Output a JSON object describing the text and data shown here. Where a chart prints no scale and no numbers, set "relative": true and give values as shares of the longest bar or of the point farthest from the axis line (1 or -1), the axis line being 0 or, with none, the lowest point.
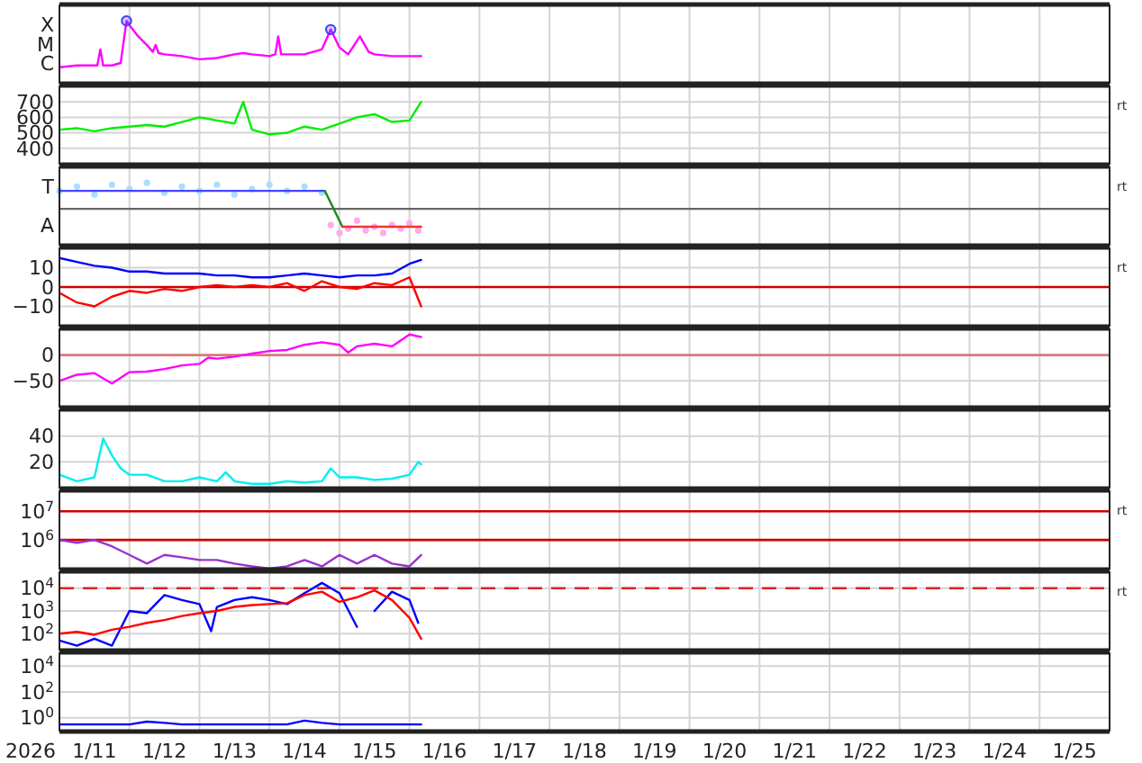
{
  "chart_data": [
    {
      "type": "line",
      "xlim": [
        "2026-01-11T00:00",
        "2026-01-26T00:00"
      ],
      "xticks": [
        {
          "value": "2026-01-11T00:00",
          "label": null
        },
        {
          "value": "2026-01-12T00:00",
          "label": null
        },
        {
          "value": "2026-01-13T00:00",
          "label": null
        },
        {
          "value": "2026-01-14T00:00",
          "label": null
        },
        {
          "value": "2026-01-15T00:00",
          "label": null
        },
        {
          "value": "2026-01-16T00:00",
          "label": null
        },
        {
          "value": "2026-01-17T00:00",
          "label": null
        },
        {
          "value": "2026-01-18T00:00",
          "label": null
        },
        {
          "value": "2026-01-19T00:00",
          "label": null
        },
        {
          "value": "2026-01-20T00:00",
          "label": null
        },
        {
          "value": "2026-01-21T00:00",
          "label": null
        },
        {
          "value": "2026-01-22T00:00",
          "label": null
        },
        {
          "value": "2026-01-23T00:00",
          "label": null
        },
        {
          "value": "2026-01-24T00:00",
          "label": null
        },
        {
          "value": "2026-01-25T00:00",
          "label": null
        },
        {
          "value": "2026-01-26T00:00",
          "label": null
        }
      ],
      "relative": true,
      "grid": true,
      "tick_labels": "y",
      "ylabel": "X\nM\nC",
      "series": [
        {
          "color": "#ff00ff",
          "x": [
            "2026-01-11T00:00",
            "2026-01-11T06:00",
            "2026-01-11T12:00",
            "2026-01-11T13:00",
            "2026-01-11T14:00",
            "2026-01-11T15:00",
            "2026-01-11T18:00",
            "2026-01-11T21:00",
            "2026-01-11T23:00",
            "2026-01-12T00:00",
            "2026-01-12T03:00",
            "2026-01-12T06:00",
            "2026-01-12T08:00",
            "2026-01-12T09:00",
            "2026-01-12T10:00",
            "2026-01-12T12:00",
            "2026-01-12T18:00",
            "2026-01-13T00:00",
            "2026-01-13T06:00",
            "2026-01-13T12:00",
            "2026-01-13T15:00",
            "2026-01-13T18:00",
            "2026-01-14T00:00",
            "2026-01-14T02:00",
            "2026-01-14T03:00",
            "2026-01-14T04:00",
            "2026-01-14T12:00",
            "2026-01-14T18:00",
            "2026-01-14T21:00",
            "2026-01-15T00:00",
            "2026-01-15T03:00",
            "2026-01-15T07:00",
            "2026-01-15T10:00",
            "2026-01-15T12:00",
            "2026-01-15T18:00",
            "2026-01-16T00:00",
            "2026-01-16T04:00"
          ],
          "values": [
            0.25,
            0.28,
            0.28,
            0.28,
            0.54,
            0.28,
            0.28,
            0.32,
            1,
            0.93,
            0.75,
            0.61,
            0.5,
            0.61,
            0.48,
            0.46,
            0.43,
            0.38,
            0.4,
            0.46,
            0.48,
            0.46,
            0.43,
            0.46,
            0.75,
            0.46,
            0.46,
            0.54,
            0.86,
            0.57,
            0.46,
            0.75,
            0.5,
            0.46,
            0.43,
            0.43,
            0.43
          ]
        },
        {
          "type": "scatter",
          "color": "#4040ff",
          "x": [
            "2026-01-11T23:00",
            "2026-01-14T21:00"
          ],
          "values": [
            1,
            0.86
          ]
        }
      ]
    },
    {
      "type": "line",
      "xlim": [
        "2026-01-11T00:00",
        "2026-01-26T00:00"
      ],
      "xticks": [
        {
          "value": "2026-01-11T00:00",
          "label": null
        },
        {
          "value": "2026-01-12T00:00",
          "label": null
        },
        {
          "value": "2026-01-13T00:00",
          "label": null
        },
        {
          "value": "2026-01-14T00:00",
          "label": null
        },
        {
          "value": "2026-01-15T00:00",
          "label": null
        },
        {
          "value": "2026-01-16T00:00",
          "label": null
        },
        {
          "value": "2026-01-17T00:00",
          "label": null
        },
        {
          "value": "2026-01-18T00:00",
          "label": null
        },
        {
          "value": "2026-01-19T00:00",
          "label": null
        },
        {
          "value": "2026-01-20T00:00",
          "label": null
        },
        {
          "value": "2026-01-21T00:00",
          "label": null
        },
        {
          "value": "2026-01-22T00:00",
          "label": null
        },
        {
          "value": "2026-01-23T00:00",
          "label": null
        },
        {
          "value": "2026-01-24T00:00",
          "label": null
        },
        {
          "value": "2026-01-25T00:00",
          "label": null
        },
        {
          "value": "2026-01-26T00:00",
          "label": null
        }
      ],
      "ylim": [
        300,
        800
      ],
      "yticks": [
        400,
        500,
        600,
        700
      ],
      "grid": true,
      "tick_labels": "y",
      "annotations": [
        "rt"
      ],
      "series": [
        {
          "color": "#00ee00",
          "x": [
            "2026-01-11T00:00",
            "2026-01-11T06:00",
            "2026-01-11T12:00",
            "2026-01-11T18:00",
            "2026-01-12T00:00",
            "2026-01-12T06:00",
            "2026-01-12T12:00",
            "2026-01-12T18:00",
            "2026-01-13T00:00",
            "2026-01-13T06:00",
            "2026-01-13T12:00",
            "2026-01-13T15:00",
            "2026-01-13T18:00",
            "2026-01-14T00:00",
            "2026-01-14T06:00",
            "2026-01-14T12:00",
            "2026-01-14T18:00",
            "2026-01-15T00:00",
            "2026-01-15T06:00",
            "2026-01-15T12:00",
            "2026-01-15T18:00",
            "2026-01-16T00:00",
            "2026-01-16T04:00"
          ],
          "values": [
            520,
            530,
            510,
            530,
            540,
            550,
            540,
            570,
            600,
            580,
            560,
            700,
            520,
            490,
            500,
            540,
            520,
            560,
            600,
            620,
            570,
            580,
            700
          ]
        }
      ]
    },
    {
      "type": "line",
      "xlim": [
        "2026-01-11T00:00",
        "2026-01-26T00:00"
      ],
      "xticks": [
        {
          "value": "2026-01-11T00:00",
          "label": null
        },
        {
          "value": "2026-01-12T00:00",
          "label": null
        },
        {
          "value": "2026-01-13T00:00",
          "label": null
        },
        {
          "value": "2026-01-14T00:00",
          "label": null
        },
        {
          "value": "2026-01-15T00:00",
          "label": null
        },
        {
          "value": "2026-01-16T00:00",
          "label": null
        },
        {
          "value": "2026-01-17T00:00",
          "label": null
        },
        {
          "value": "2026-01-18T00:00",
          "label": null
        },
        {
          "value": "2026-01-19T00:00",
          "label": null
        },
        {
          "value": "2026-01-20T00:00",
          "label": null
        },
        {
          "value": "2026-01-21T00:00",
          "label": null
        },
        {
          "value": "2026-01-22T00:00",
          "label": null
        },
        {
          "value": "2026-01-23T00:00",
          "label": null
        },
        {
          "value": "2026-01-24T00:00",
          "label": null
        },
        {
          "value": "2026-01-25T00:00",
          "label": null
        },
        {
          "value": "2026-01-26T00:00",
          "label": null
        }
      ],
      "relative": true,
      "grid": true,
      "tick_labels": "y",
      "annotations": [
        "rt"
      ],
      "ylabel": "T\nA",
      "series": [
        {
          "type": "scatter",
          "color": "#aaddff",
          "x": [
            "2026-01-11T00:00",
            "2026-01-11T06:00",
            "2026-01-11T12:00",
            "2026-01-11T18:00",
            "2026-01-12T00:00",
            "2026-01-12T06:00",
            "2026-01-12T12:00",
            "2026-01-12T18:00",
            "2026-01-13T00:00",
            "2026-01-13T06:00",
            "2026-01-13T12:00",
            "2026-01-13T18:00",
            "2026-01-14T00:00",
            "2026-01-14T06:00",
            "2026-01-14T12:00",
            "2026-01-14T18:00"
          ],
          "values": [
            0.87,
            0.94,
            0.81,
            0.97,
            0.9,
            1,
            0.84,
            0.94,
            0.87,
            0.97,
            0.81,
            0.9,
            0.97,
            0.87,
            0.94,
            0.84
          ]
        },
        {
          "type": "scatter",
          "color": "#ffaaee",
          "x": [
            "2026-01-14T21:00",
            "2026-01-15T00:00",
            "2026-01-15T03:00",
            "2026-01-15T06:00",
            "2026-01-15T09:00",
            "2026-01-15T12:00",
            "2026-01-15T15:00",
            "2026-01-15T18:00",
            "2026-01-15T21:00",
            "2026-01-16T00:00",
            "2026-01-16T03:00"
          ],
          "values": [
            0.32,
            0.19,
            0.26,
            0.39,
            0.23,
            0.29,
            0.19,
            0.32,
            0.26,
            0.35,
            0.23
          ]
        },
        {
          "color": "#666666",
          "x": [
            "2026-01-11T00:00",
            "2026-01-26T00:00"
          ],
          "values": [
            0.58,
            0.58
          ]
        },
        {
          "color": "#4444ff",
          "x": [
            "2026-01-11T00:00",
            "2026-01-14T19:00"
          ],
          "values": [
            0.87,
            0.87
          ]
        },
        {
          "color": "#228822",
          "x": [
            "2026-01-14T19:00",
            "2026-01-15T01:00"
          ],
          "values": [
            0.87,
            0.29
          ]
        },
        {
          "color": "#ee3333",
          "x": [
            "2026-01-15T01:00",
            "2026-01-16T04:00"
          ],
          "values": [
            0.29,
            0.29
          ]
        }
      ]
    },
    {
      "type": "line",
      "xlim": [
        "2026-01-11T00:00",
        "2026-01-26T00:00"
      ],
      "xticks": [
        {
          "value": "2026-01-11T00:00",
          "label": null
        },
        {
          "value": "2026-01-12T00:00",
          "label": null
        },
        {
          "value": "2026-01-13T00:00",
          "label": null
        },
        {
          "value": "2026-01-14T00:00",
          "label": null
        },
        {
          "value": "2026-01-15T00:00",
          "label": null
        },
        {
          "value": "2026-01-16T00:00",
          "label": null
        },
        {
          "value": "2026-01-17T00:00",
          "label": null
        },
        {
          "value": "2026-01-18T00:00",
          "label": null
        },
        {
          "value": "2026-01-19T00:00",
          "label": null
        },
        {
          "value": "2026-01-20T00:00",
          "label": null
        },
        {
          "value": "2026-01-21T00:00",
          "label": null
        },
        {
          "value": "2026-01-22T00:00",
          "label": null
        },
        {
          "value": "2026-01-23T00:00",
          "label": null
        },
        {
          "value": "2026-01-24T00:00",
          "label": null
        },
        {
          "value": "2026-01-25T00:00",
          "label": null
        },
        {
          "value": "2026-01-26T00:00",
          "label": null
        }
      ],
      "ylim": [
        -20,
        20
      ],
      "yticks": [
        {
          "value": -10,
          "label": "−10"
        },
        0,
        10
      ],
      "grid": true,
      "tick_labels": "y",
      "annotations": [
        "rt"
      ],
      "ref_lines": [
        {
          "axis": "y",
          "value": 0,
          "color": "#cc0000"
        }
      ],
      "x": [
        "2026-01-11T00:00",
        "2026-01-11T06:00",
        "2026-01-11T12:00",
        "2026-01-11T18:00",
        "2026-01-12T00:00",
        "2026-01-12T06:00",
        "2026-01-12T12:00",
        "2026-01-12T18:00",
        "2026-01-13T00:00",
        "2026-01-13T06:00",
        "2026-01-13T12:00",
        "2026-01-13T18:00",
        "2026-01-14T00:00",
        "2026-01-14T06:00",
        "2026-01-14T12:00",
        "2026-01-14T18:00",
        "2026-01-15T00:00",
        "2026-01-15T06:00",
        "2026-01-15T12:00",
        "2026-01-15T18:00",
        "2026-01-16T00:00",
        "2026-01-16T04:00"
      ],
      "series": [
        {
          "color": "#0000ff",
          "values": [
            15,
            13,
            11,
            10,
            8,
            8,
            7,
            7,
            7,
            6,
            6,
            5,
            5,
            6,
            7,
            6,
            5,
            6,
            6,
            7,
            12,
            14
          ]
        },
        {
          "color": "#ff0000",
          "values": [
            -3,
            -8,
            -10,
            -5,
            -2,
            -3,
            -1,
            -2,
            0,
            1,
            0,
            1,
            0,
            2,
            -2,
            3,
            0,
            -1,
            2,
            1,
            5,
            -10
          ]
        }
      ]
    },
    {
      "type": "line",
      "xlim": [
        "2026-01-11T00:00",
        "2026-01-26T00:00"
      ],
      "xticks": [
        {
          "value": "2026-01-11T00:00",
          "label": null
        },
        {
          "value": "2026-01-12T00:00",
          "label": null
        },
        {
          "value": "2026-01-13T00:00",
          "label": null
        },
        {
          "value": "2026-01-14T00:00",
          "label": null
        },
        {
          "value": "2026-01-15T00:00",
          "label": null
        },
        {
          "value": "2026-01-16T00:00",
          "label": null
        },
        {
          "value": "2026-01-17T00:00",
          "label": null
        },
        {
          "value": "2026-01-18T00:00",
          "label": null
        },
        {
          "value": "2026-01-19T00:00",
          "label": null
        },
        {
          "value": "2026-01-20T00:00",
          "label": null
        },
        {
          "value": "2026-01-21T00:00",
          "label": null
        },
        {
          "value": "2026-01-22T00:00",
          "label": null
        },
        {
          "value": "2026-01-23T00:00",
          "label": null
        },
        {
          "value": "2026-01-24T00:00",
          "label": null
        },
        {
          "value": "2026-01-25T00:00",
          "label": null
        },
        {
          "value": "2026-01-26T00:00",
          "label": null
        }
      ],
      "ylim": [
        -100,
        50
      ],
      "yticks": [
        {
          "value": -50,
          "label": "−50"
        },
        0
      ],
      "grid": true,
      "tick_labels": "y",
      "ref_lines": [
        {
          "axis": "y",
          "value": 0,
          "color": "#dd7777"
        }
      ],
      "series": [
        {
          "color": "#ff00ff",
          "x": [
            "2026-01-11T00:00",
            "2026-01-11T06:00",
            "2026-01-11T12:00",
            "2026-01-11T18:00",
            "2026-01-12T00:00",
            "2026-01-12T06:00",
            "2026-01-12T12:00",
            "2026-01-12T18:00",
            "2026-01-13T00:00",
            "2026-01-13T03:00",
            "2026-01-13T06:00",
            "2026-01-13T12:00",
            "2026-01-13T18:00",
            "2026-01-14T00:00",
            "2026-01-14T06:00",
            "2026-01-14T12:00",
            "2026-01-14T18:00",
            "2026-01-15T00:00",
            "2026-01-15T03:00",
            "2026-01-15T06:00",
            "2026-01-15T12:00",
            "2026-01-15T18:00",
            "2026-01-16T00:00",
            "2026-01-16T04:00"
          ],
          "values": [
            -50,
            -38,
            -35,
            -55,
            -33,
            -32,
            -27,
            -20,
            -17,
            -5,
            -7,
            -3,
            3,
            8,
            10,
            20,
            25,
            20,
            5,
            17,
            22,
            17,
            40,
            35
          ]
        }
      ]
    },
    {
      "type": "line",
      "xlim": [
        "2026-01-11T00:00",
        "2026-01-26T00:00"
      ],
      "xticks": [
        {
          "value": "2026-01-11T00:00",
          "label": null
        },
        {
          "value": "2026-01-12T00:00",
          "label": null
        },
        {
          "value": "2026-01-13T00:00",
          "label": null
        },
        {
          "value": "2026-01-14T00:00",
          "label": null
        },
        {
          "value": "2026-01-15T00:00",
          "label": null
        },
        {
          "value": "2026-01-16T00:00",
          "label": null
        },
        {
          "value": "2026-01-17T00:00",
          "label": null
        },
        {
          "value": "2026-01-18T00:00",
          "label": null
        },
        {
          "value": "2026-01-19T00:00",
          "label": null
        },
        {
          "value": "2026-01-20T00:00",
          "label": null
        },
        {
          "value": "2026-01-21T00:00",
          "label": null
        },
        {
          "value": "2026-01-22T00:00",
          "label": null
        },
        {
          "value": "2026-01-23T00:00",
          "label": null
        },
        {
          "value": "2026-01-24T00:00",
          "label": null
        },
        {
          "value": "2026-01-25T00:00",
          "label": null
        },
        {
          "value": "2026-01-26T00:00",
          "label": null
        }
      ],
      "ylim": [
        0,
        60
      ],
      "yticks": [
        20,
        40
      ],
      "grid": true,
      "tick_labels": "y",
      "series": [
        {
          "color": "#00eeee",
          "x": [
            "2026-01-11T00:00",
            "2026-01-11T06:00",
            "2026-01-11T12:00",
            "2026-01-11T15:00",
            "2026-01-11T18:00",
            "2026-01-11T21:00",
            "2026-01-12T00:00",
            "2026-01-12T06:00",
            "2026-01-12T12:00",
            "2026-01-12T18:00",
            "2026-01-13T00:00",
            "2026-01-13T06:00",
            "2026-01-13T09:00",
            "2026-01-13T12:00",
            "2026-01-13T18:00",
            "2026-01-14T00:00",
            "2026-01-14T06:00",
            "2026-01-14T12:00",
            "2026-01-14T18:00",
            "2026-01-14T21:00",
            "2026-01-15T00:00",
            "2026-01-15T06:00",
            "2026-01-15T12:00",
            "2026-01-15T18:00",
            "2026-01-16T00:00",
            "2026-01-16T03:00",
            "2026-01-16T04:00"
          ],
          "values": [
            10,
            5,
            8,
            38,
            25,
            15,
            10,
            10,
            5,
            5,
            8,
            5,
            12,
            5,
            3,
            3,
            5,
            4,
            5,
            15,
            8,
            8,
            6,
            7,
            10,
            20,
            18
          ]
        }
      ]
    },
    {
      "type": "line",
      "xlim": [
        "2026-01-11T00:00",
        "2026-01-26T00:00"
      ],
      "xticks": [
        {
          "value": "2026-01-11T00:00",
          "label": null
        },
        {
          "value": "2026-01-12T00:00",
          "label": null
        },
        {
          "value": "2026-01-13T00:00",
          "label": null
        },
        {
          "value": "2026-01-14T00:00",
          "label": null
        },
        {
          "value": "2026-01-15T00:00",
          "label": null
        },
        {
          "value": "2026-01-16T00:00",
          "label": null
        },
        {
          "value": "2026-01-17T00:00",
          "label": null
        },
        {
          "value": "2026-01-18T00:00",
          "label": null
        },
        {
          "value": "2026-01-19T00:00",
          "label": null
        },
        {
          "value": "2026-01-20T00:00",
          "label": null
        },
        {
          "value": "2026-01-21T00:00",
          "label": null
        },
        {
          "value": "2026-01-22T00:00",
          "label": null
        },
        {
          "value": "2026-01-23T00:00",
          "label": null
        },
        {
          "value": "2026-01-24T00:00",
          "label": null
        },
        {
          "value": "2026-01-25T00:00",
          "label": null
        },
        {
          "value": "2026-01-26T00:00",
          "label": null
        }
      ],
      "ylim": [
        100000.0,
        50000000.0
      ],
      "yticks": [
        {
          "value": 1000000.0,
          "label": "10$^{6}$"
        },
        {
          "value": 10000000.0,
          "label": "10$^{7}$"
        }
      ],
      "log": true,
      "grid": true,
      "tick_labels": "y",
      "annotations": [
        "rt"
      ],
      "ref_lines": [
        {
          "axis": "y",
          "value": 1000000.0,
          "color": "#cc0000"
        },
        {
          "axis": "y",
          "value": 10000000.0,
          "color": "#cc0000"
        }
      ],
      "series": [
        {
          "color": "#9933cc",
          "x": [
            "2026-01-11T00:00",
            "2026-01-11T06:00",
            "2026-01-11T12:00",
            "2026-01-11T18:00",
            "2026-01-12T00:00",
            "2026-01-12T06:00",
            "2026-01-12T12:00",
            "2026-01-12T18:00",
            "2026-01-13T00:00",
            "2026-01-13T06:00",
            "2026-01-13T12:00",
            "2026-01-13T18:00",
            "2026-01-14T00:00",
            "2026-01-14T06:00",
            "2026-01-14T12:00",
            "2026-01-14T18:00",
            "2026-01-15T00:00",
            "2026-01-15T06:00",
            "2026-01-15T12:00",
            "2026-01-15T18:00",
            "2026-01-16T00:00",
            "2026-01-16T04:00"
          ],
          "values": [
            1000000.0,
            800000.0,
            1000000.0,
            600000.0,
            300000.0,
            150000.0,
            300000.0,
            250000.0,
            200000.0,
            200000.0,
            150000.0,
            120000.0,
            100000.0,
            120000.0,
            200000.0,
            120000.0,
            300000.0,
            150000.0,
            300000.0,
            150000.0,
            120000.0,
            300000.0
          ]
        }
      ]
    },
    {
      "type": "line",
      "xlim": [
        "2026-01-11T00:00",
        "2026-01-26T00:00"
      ],
      "xticks": [
        {
          "value": "2026-01-11T00:00",
          "label": null
        },
        {
          "value": "2026-01-12T00:00",
          "label": null
        },
        {
          "value": "2026-01-13T00:00",
          "label": null
        },
        {
          "value": "2026-01-14T00:00",
          "label": null
        },
        {
          "value": "2026-01-15T00:00",
          "label": null
        },
        {
          "value": "2026-01-16T00:00",
          "label": null
        },
        {
          "value": "2026-01-17T00:00",
          "label": null
        },
        {
          "value": "2026-01-18T00:00",
          "label": null
        },
        {
          "value": "2026-01-19T00:00",
          "label": null
        },
        {
          "value": "2026-01-20T00:00",
          "label": null
        },
        {
          "value": "2026-01-21T00:00",
          "label": null
        },
        {
          "value": "2026-01-22T00:00",
          "label": null
        },
        {
          "value": "2026-01-23T00:00",
          "label": null
        },
        {
          "value": "2026-01-24T00:00",
          "label": null
        },
        {
          "value": "2026-01-25T00:00",
          "label": null
        },
        {
          "value": "2026-01-26T00:00",
          "label": null
        }
      ],
      "ylim": [
        20,
        50000
      ],
      "yticks": [
        {
          "value": 100,
          "label": "10$^{2}$"
        },
        {
          "value": 1000,
          "label": "10$^{3}$"
        },
        {
          "value": 10000,
          "label": "10$^{4}$"
        }
      ],
      "log": true,
      "grid": true,
      "tick_labels": "y",
      "annotations": [
        "rt"
      ],
      "ref_lines": [
        {
          "axis": "y",
          "value": 10000,
          "color": "#dd2222",
          "line_style": "dashed"
        }
      ],
      "series": [
        {
          "color": "#0000ff",
          "x": [
            "2026-01-11T00:00",
            "2026-01-11T06:00",
            "2026-01-11T12:00",
            "2026-01-11T18:00",
            "2026-01-12T00:00",
            "2026-01-12T06:00",
            "2026-01-12T12:00",
            "2026-01-12T18:00",
            "2026-01-13T00:00",
            "2026-01-13T04:00",
            "2026-01-13T06:00",
            "2026-01-13T12:00",
            "2026-01-13T18:00",
            "2026-01-14T00:00",
            "2026-01-14T06:00",
            "2026-01-14T12:00",
            "2026-01-14T18:00",
            "2026-01-15T00:00",
            "2026-01-15T06:00",
            "2026-01-15T10:00",
            "2026-01-15T12:00",
            "2026-01-15T18:00",
            "2026-01-16T00:00",
            "2026-01-16T03:00"
          ],
          "values": [
            50,
            30,
            60,
            30,
            1000,
            800,
            5000,
            3000,
            2000,
            130,
            1500,
            3000,
            4000,
            3000,
            2000,
            6000,
            17000,
            6000,
            200,
            null,
            1000,
            7000,
            3000,
            300
          ]
        },
        {
          "color": "#ff0000",
          "x": [
            "2026-01-11T00:00",
            "2026-01-11T06:00",
            "2026-01-11T12:00",
            "2026-01-11T18:00",
            "2026-01-12T00:00",
            "2026-01-12T06:00",
            "2026-01-12T12:00",
            "2026-01-12T18:00",
            "2026-01-13T00:00",
            "2026-01-13T06:00",
            "2026-01-13T12:00",
            "2026-01-13T18:00",
            "2026-01-14T00:00",
            "2026-01-14T06:00",
            "2026-01-14T12:00",
            "2026-01-14T18:00",
            "2026-01-15T00:00",
            "2026-01-15T06:00",
            "2026-01-15T12:00",
            "2026-01-15T18:00",
            "2026-01-16T00:00",
            "2026-01-16T04:00"
          ],
          "values": [
            100,
            120,
            90,
            150,
            200,
            300,
            400,
            600,
            800,
            1000,
            1500,
            1800,
            2000,
            2200,
            5000,
            7000,
            2500,
            4000,
            8000,
            3000,
            500,
            60
          ]
        }
      ]
    },
    {
      "type": "line",
      "xlim": [
        "2026-01-11T00:00",
        "2026-01-26T00:00"
      ],
      "xticks": [
        {
          "value": "2026-01-11T00:00",
          "label": null
        },
        {
          "value": "2026-01-11T12:00",
          "label": "1/11"
        },
        {
          "value": "2026-01-12T00:00",
          "label": null
        },
        {
          "value": "2026-01-12T12:00",
          "label": "1/12"
        },
        {
          "value": "2026-01-13T00:00",
          "label": null
        },
        {
          "value": "2026-01-13T12:00",
          "label": "1/13"
        },
        {
          "value": "2026-01-14T00:00",
          "label": null
        },
        {
          "value": "2026-01-14T12:00",
          "label": "1/14"
        },
        {
          "value": "2026-01-15T00:00",
          "label": null
        },
        {
          "value": "2026-01-15T12:00",
          "label": "1/15"
        },
        {
          "value": "2026-01-16T00:00",
          "label": null
        },
        {
          "value": "2026-01-16T12:00",
          "label": "1/16"
        },
        {
          "value": "2026-01-17T00:00",
          "label": null
        },
        {
          "value": "2026-01-17T12:00",
          "label": "1/17"
        },
        {
          "value": "2026-01-18T00:00",
          "label": null
        },
        {
          "value": "2026-01-18T12:00",
          "label": "1/18"
        },
        {
          "value": "2026-01-19T00:00",
          "label": null
        },
        {
          "value": "2026-01-19T12:00",
          "label": "1/19"
        },
        {
          "value": "2026-01-20T00:00",
          "label": null
        },
        {
          "value": "2026-01-20T12:00",
          "label": "1/20"
        },
        {
          "value": "2026-01-21T00:00",
          "label": null
        },
        {
          "value": "2026-01-21T12:00",
          "label": "1/21"
        },
        {
          "value": "2026-01-22T00:00",
          "label": null
        },
        {
          "value": "2026-01-22T12:00",
          "label": "1/22"
        },
        {
          "value": "2026-01-23T00:00",
          "label": null
        },
        {
          "value": "2026-01-23T12:00",
          "label": "1/23"
        },
        {
          "value": "2026-01-24T00:00",
          "label": null
        },
        {
          "value": "2026-01-24T12:00",
          "label": "1/24"
        },
        {
          "value": "2026-01-25T00:00",
          "label": null
        },
        {
          "value": "2026-01-25T12:00",
          "label": "1/25"
        },
        {
          "value": "2026-01-26T00:00",
          "label": null
        }
      ],
      "ylim": [
        0.1,
        100000
      ],
      "yticks": [
        {
          "value": 1,
          "label": "10$^{0}$"
        },
        {
          "value": 100,
          "label": "10$^{2}$"
        },
        {
          "value": 10000,
          "label": "10$^{4}$"
        }
      ],
      "log": true,
      "grid": true,
      "xlabel": "2026",
      "series": [
        {
          "color": "#0000ff",
          "x": [
            "2026-01-11T00:00",
            "2026-01-11T06:00",
            "2026-01-11T12:00",
            "2026-01-11T18:00",
            "2026-01-12T00:00",
            "2026-01-12T06:00",
            "2026-01-12T12:00",
            "2026-01-12T18:00",
            "2026-01-13T00:00",
            "2026-01-13T06:00",
            "2026-01-13T12:00",
            "2026-01-13T18:00",
            "2026-01-14T00:00",
            "2026-01-14T06:00",
            "2026-01-14T12:00",
            "2026-01-14T18:00",
            "2026-01-15T00:00",
            "2026-01-15T06:00",
            "2026-01-15T12:00",
            "2026-01-15T18:00",
            "2026-01-16T00:00",
            "2026-01-16T04:00"
          ],
          "values": [
            0.3,
            0.3,
            0.3,
            0.3,
            0.3,
            0.5,
            0.4,
            0.3,
            0.3,
            0.3,
            0.3,
            0.3,
            0.3,
            0.3,
            0.6,
            0.4,
            0.3,
            0.3,
            0.3,
            0.3,
            0.3,
            0.3
          ]
        }
      ]
    }
  ]
}
